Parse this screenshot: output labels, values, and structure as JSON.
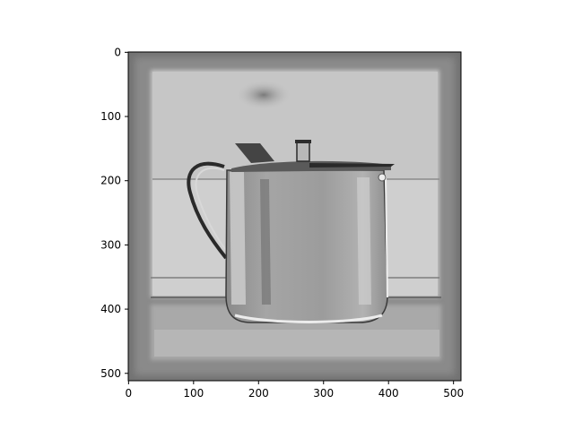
{
  "chart_data": {
    "type": "heatmap",
    "title": "",
    "xlabel": "",
    "ylabel": "",
    "image_size": [
      512,
      512
    ],
    "colormap": "gray",
    "xlim": [
      0,
      511
    ],
    "ylim": [
      511,
      0
    ],
    "x_ticks": [
      0,
      100,
      200,
      300,
      400,
      500
    ],
    "y_ticks": [
      0,
      100,
      200,
      300,
      400,
      500
    ],
    "image_subject": "grayscale rendering of a metal teapot with lid and handle standing in front of a pale rectangular backdrop",
    "grid": false,
    "legend": "none",
    "colors": {
      "border": "#6f6f6f",
      "backdrop": "#bdbdbd",
      "pot_body": "#9a9a9a",
      "table": "#a8a8a8",
      "outline": "#222222"
    }
  }
}
